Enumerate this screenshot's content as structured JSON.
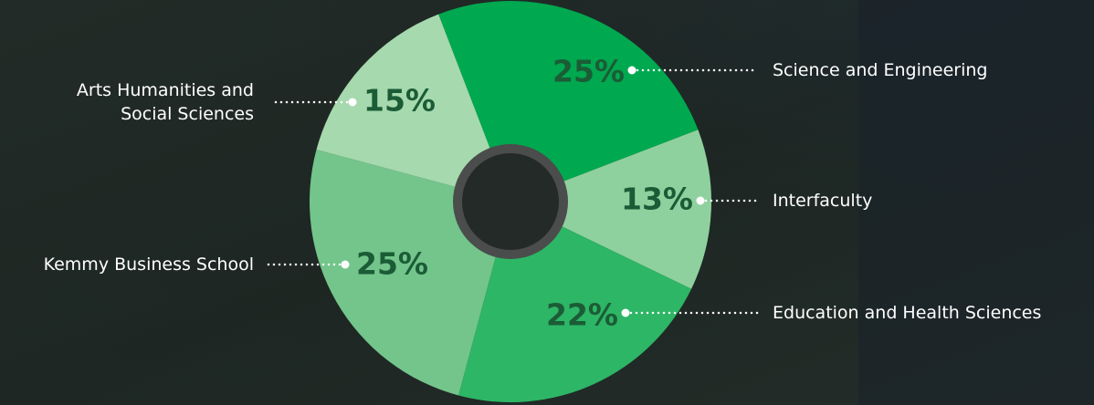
{
  "chart_data": {
    "type": "pie",
    "categories": [
      "Science and Engineering",
      "Interfaculty",
      "Education and Health Sciences",
      "Kemmy Business School",
      "Arts Humanities and Social Sciences"
    ],
    "values": [
      25,
      13,
      22,
      25,
      15
    ],
    "value_labels": [
      "25%",
      "13%",
      "22%",
      "25%",
      "15%"
    ],
    "colors": [
      "#00a84f",
      "#8fd19e",
      "#2db666",
      "#73c58b",
      "#a6d9ae"
    ]
  }
}
